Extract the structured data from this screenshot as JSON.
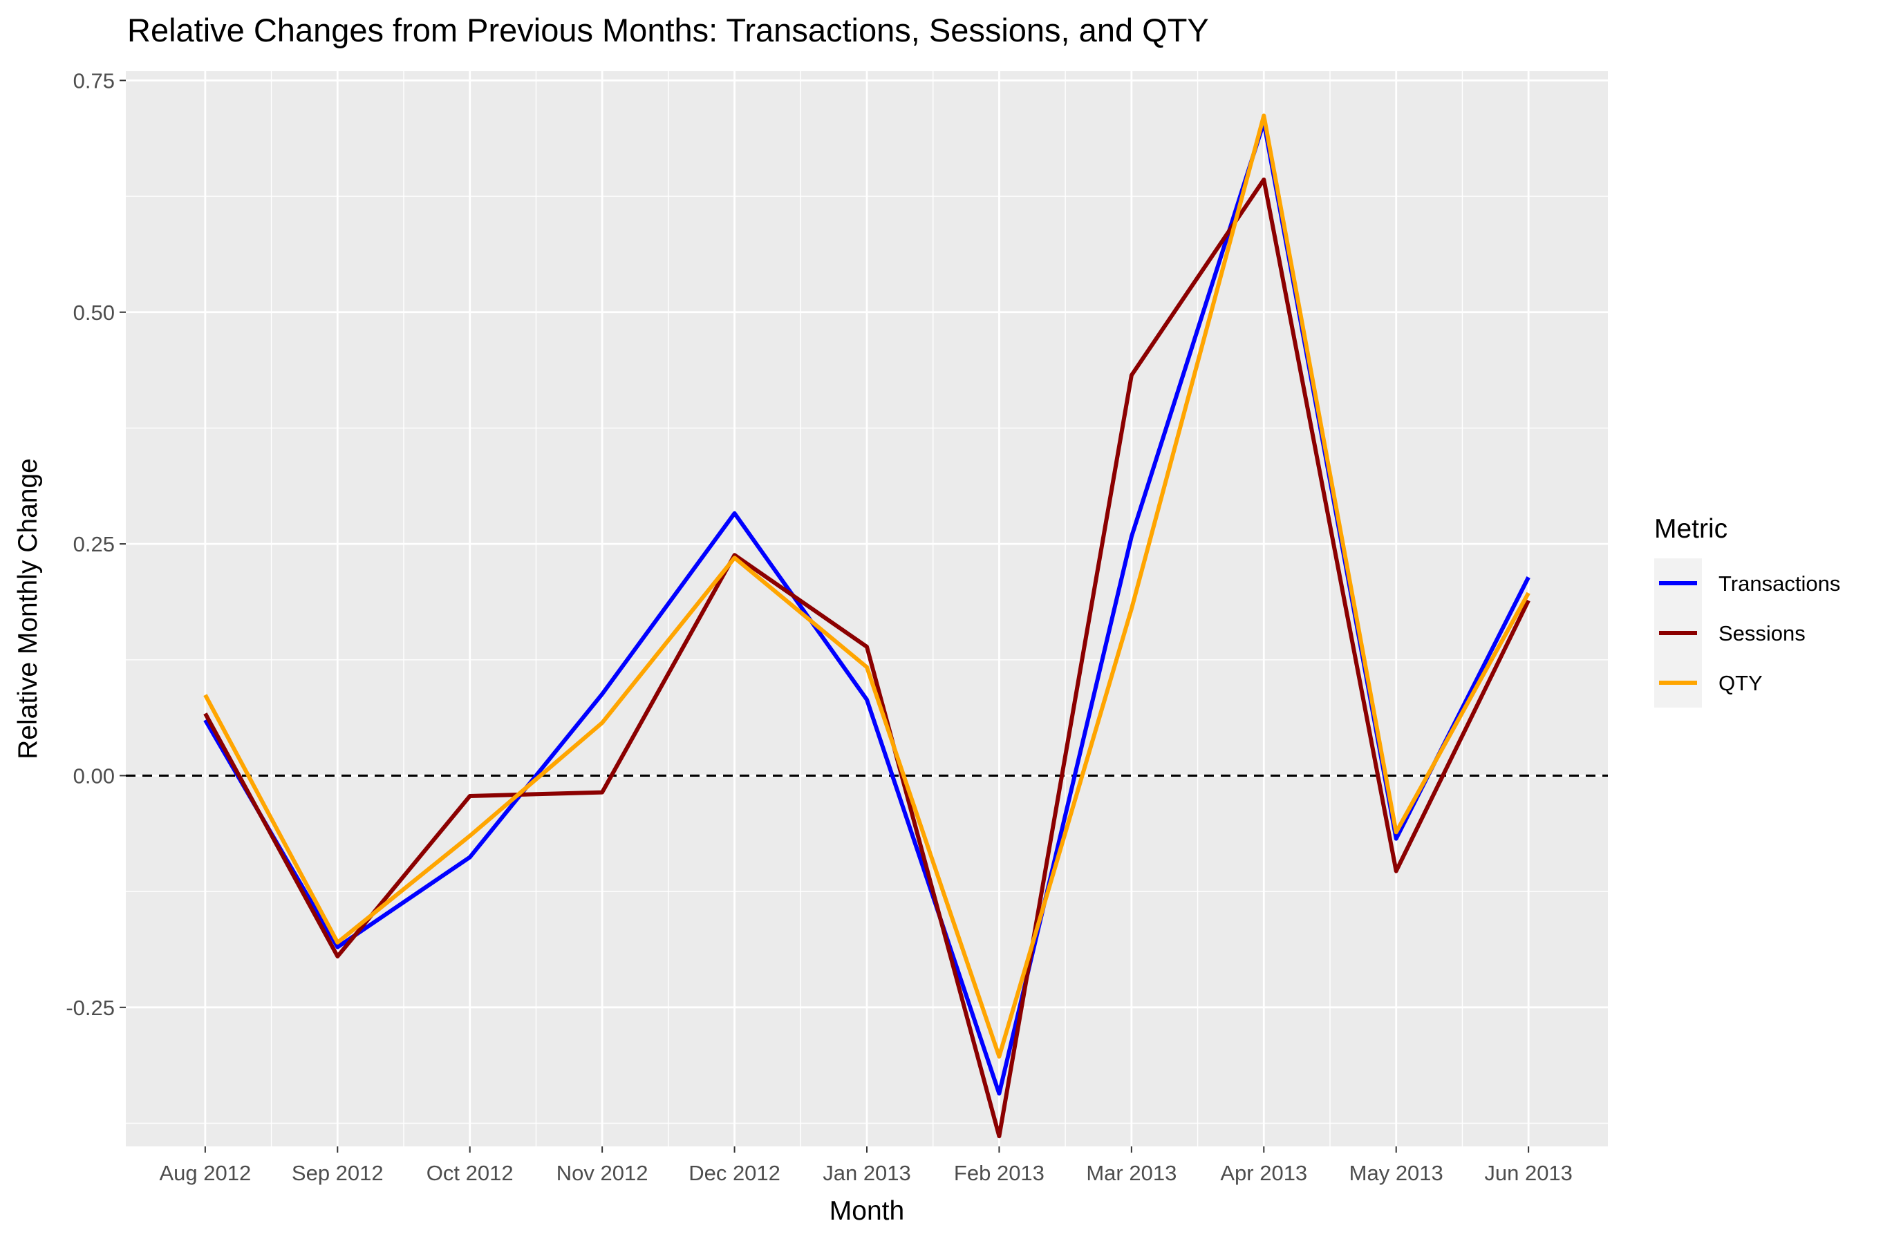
{
  "chart_data": {
    "type": "line",
    "title": "Relative Changes from Previous Months: Transactions, Sessions, and QTY",
    "xlabel": "Month",
    "ylabel": "Relative Monthly Change",
    "categories": [
      "Aug 2012",
      "Sep 2012",
      "Oct 2012",
      "Nov 2012",
      "Dec 2012",
      "Jan 2013",
      "Feb 2013",
      "Mar 2013",
      "Apr 2013",
      "May 2013",
      "Jun 2013"
    ],
    "ylim": [
      -0.4,
      0.76
    ],
    "yticks": [
      -0.25,
      0.0,
      0.25,
      0.5,
      0.75
    ],
    "ytick_labels": [
      "-0.25",
      "0.00",
      "0.25",
      "0.50",
      "0.75"
    ],
    "reference_line": {
      "y": 0.0,
      "style": "dashed",
      "color": "#000000"
    },
    "grid": true,
    "background": "#ebebeb",
    "legend": {
      "title": "Metric",
      "position": "right"
    },
    "series": [
      {
        "name": "Transactions",
        "color": "#0000ff",
        "values": [
          0.06,
          -0.185,
          -0.088,
          0.088,
          0.283,
          0.082,
          -0.343,
          0.258,
          0.705,
          -0.068,
          0.214
        ]
      },
      {
        "name": "Sessions",
        "color": "#8b0000",
        "values": [
          0.067,
          -0.195,
          -0.022,
          -0.018,
          0.238,
          0.139,
          -0.389,
          0.432,
          0.643,
          -0.103,
          0.189
        ]
      },
      {
        "name": "QTY",
        "color": "#ffa500",
        "values": [
          0.087,
          -0.18,
          -0.065,
          0.057,
          0.235,
          0.117,
          -0.303,
          0.18,
          0.712,
          -0.061,
          0.197
        ]
      }
    ]
  }
}
